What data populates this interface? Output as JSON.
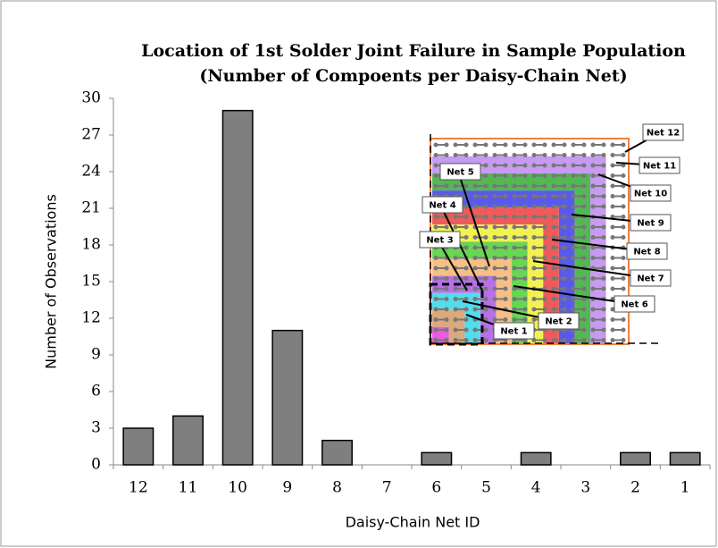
{
  "chart_data": {
    "type": "bar",
    "title": "Location of 1st  Solder Joint Failure in Sample Population",
    "subtitle": "(Number of Compoents per Daisy-Chain Net)",
    "x_label": "Daisy-Chain Net ID",
    "y_label": "Number of Observations",
    "categories": [
      "12",
      "11",
      "10",
      "9",
      "8",
      "7",
      "6",
      "5",
      "4",
      "3",
      "2",
      "1"
    ],
    "values": [
      3,
      4,
      29,
      11,
      2,
      0,
      1,
      0,
      1,
      0,
      1,
      1
    ],
    "color": "#7f7f7f",
    "ylim": [
      0,
      30
    ],
    "yticks": [
      0,
      3,
      6,
      9,
      12,
      15,
      18,
      21,
      24,
      27,
      30
    ],
    "annotations": [
      "Net 12",
      "Net 11",
      "Net 10",
      "Net 9",
      "Net 8",
      "Net 7",
      "Net 6",
      "Net 5",
      "Net 4",
      "Net 3",
      "Net 2",
      "Net 1"
    ]
  }
}
